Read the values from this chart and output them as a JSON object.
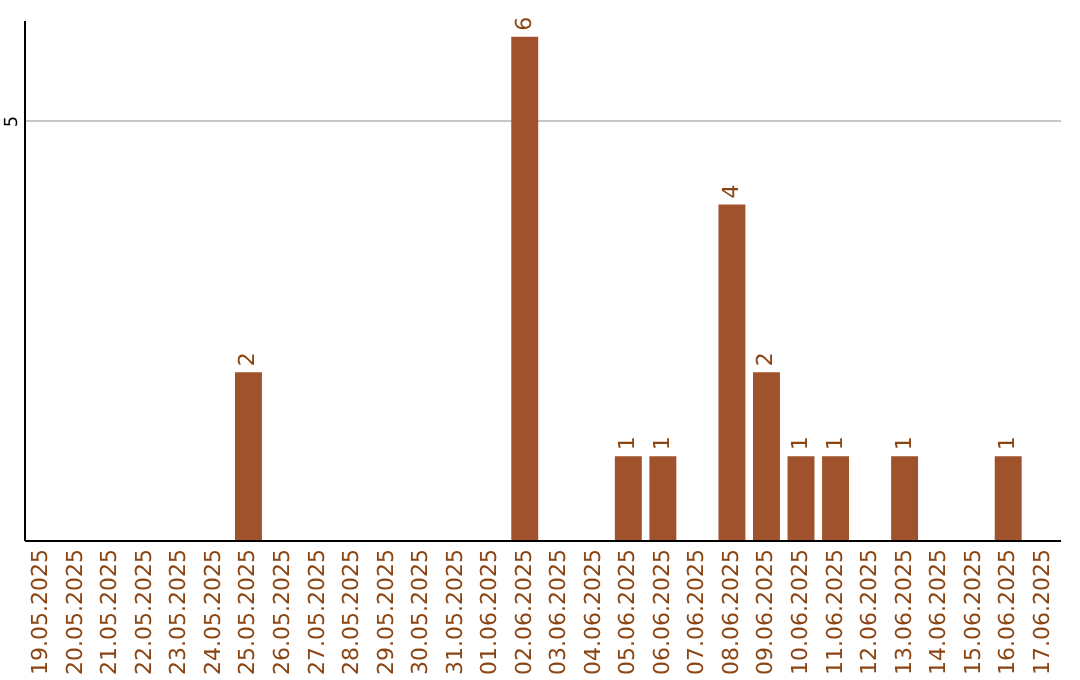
{
  "chart_data": {
    "type": "bar",
    "categories": [
      "19.05.2025",
      "20.05.2025",
      "21.05.2025",
      "22.05.2025",
      "23.05.2025",
      "24.05.2025",
      "25.05.2025",
      "26.05.2025",
      "27.05.2025",
      "28.05.2025",
      "29.05.2025",
      "30.05.2025",
      "31.05.2025",
      "01.06.2025",
      "02.06.2025",
      "03.06.2025",
      "04.06.2025",
      "05.06.2025",
      "06.06.2025",
      "07.06.2025",
      "08.06.2025",
      "09.06.2025",
      "10.06.2025",
      "11.06.2025",
      "12.06.2025",
      "13.06.2025",
      "14.06.2025",
      "15.06.2025",
      "16.06.2025",
      "17.06.2025"
    ],
    "values": [
      0,
      0,
      0,
      0,
      0,
      0,
      2,
      0,
      0,
      0,
      0,
      0,
      0,
      0,
      6,
      0,
      0,
      1,
      1,
      0,
      4,
      2,
      1,
      1,
      0,
      1,
      0,
      0,
      1,
      0
    ],
    "value_labels": [
      null,
      null,
      null,
      null,
      null,
      null,
      "2",
      null,
      null,
      null,
      null,
      null,
      null,
      null,
      "6",
      null,
      null,
      "1",
      "1",
      null,
      "4",
      "2",
      "1",
      "1",
      null,
      "1",
      null,
      null,
      "1",
      null
    ],
    "color": "#a0522d",
    "ylim": [
      0,
      6.2
    ],
    "yticks": [
      5
    ],
    "grid": "y"
  }
}
